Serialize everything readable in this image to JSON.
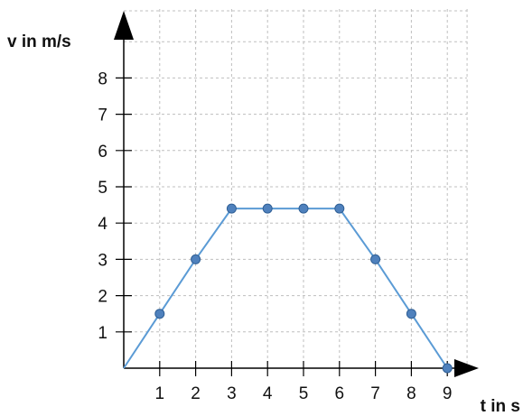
{
  "chart_data": {
    "type": "line",
    "title": "",
    "xlabel": "t in s",
    "ylabel": "v in m/s",
    "x_ticks": [
      "1",
      "2",
      "3",
      "4",
      "5",
      "6",
      "7",
      "8",
      "9"
    ],
    "y_ticks": [
      "1",
      "2",
      "3",
      "4",
      "5",
      "6",
      "7",
      "8"
    ],
    "xlim": [
      0,
      9.5
    ],
    "ylim": [
      0,
      9.5
    ],
    "grid": true,
    "series": [
      {
        "x": [
          0,
          1,
          2,
          3,
          4,
          5,
          6,
          7,
          8,
          9
        ],
        "y": [
          0,
          1.5,
          3,
          4.4,
          4.4,
          4.4,
          4.4,
          3,
          1.5,
          0
        ],
        "markers": [
          false,
          true,
          true,
          true,
          true,
          true,
          true,
          true,
          true,
          true
        ]
      }
    ],
    "colors": {
      "line": "#5b9bd5",
      "marker_fill": "#4f81bd",
      "marker_stroke": "#2f5f95",
      "grid": "#bfbfbf",
      "axis": "#000000"
    }
  }
}
